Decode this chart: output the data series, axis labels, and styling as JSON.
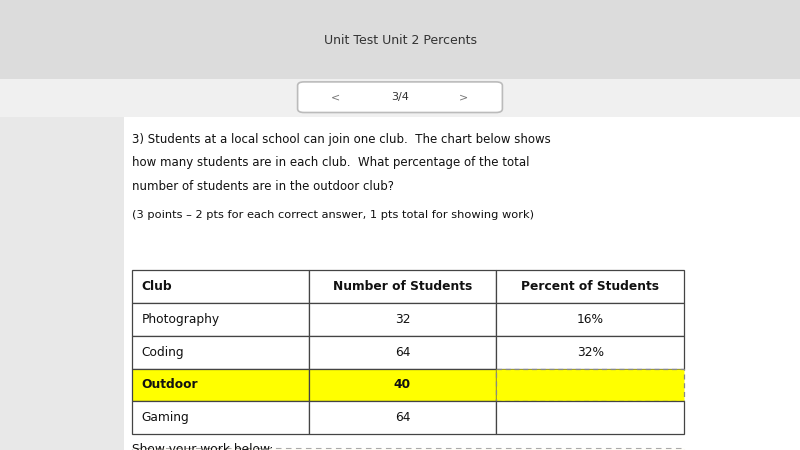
{
  "page_title": "Unit Test Unit 2 Percents",
  "question_text_line1": "3) Students at a local school can join one club.  The chart below shows",
  "question_text_line2": "how many students are in each club.  What percentage of the total",
  "question_text_line3": "number of students are in the outdoor club?",
  "points_text": "(3 points – 2 pts for each correct answer, 1 pts total for showing work)",
  "headers": [
    "Club",
    "Number of Students",
    "Percent of Students"
  ],
  "rows": [
    [
      "Photography",
      "32",
      "16%"
    ],
    [
      "Coding",
      "64",
      "32%"
    ],
    [
      "Outdoor",
      "40",
      ""
    ],
    [
      "Gaming",
      "64",
      ""
    ]
  ],
  "highlight_row_index": 2,
  "highlight_color": "#FFFF00",
  "show_work_text": "Show your work below:",
  "bg_color": "#FFFFFF",
  "nav_text": "3/4"
}
